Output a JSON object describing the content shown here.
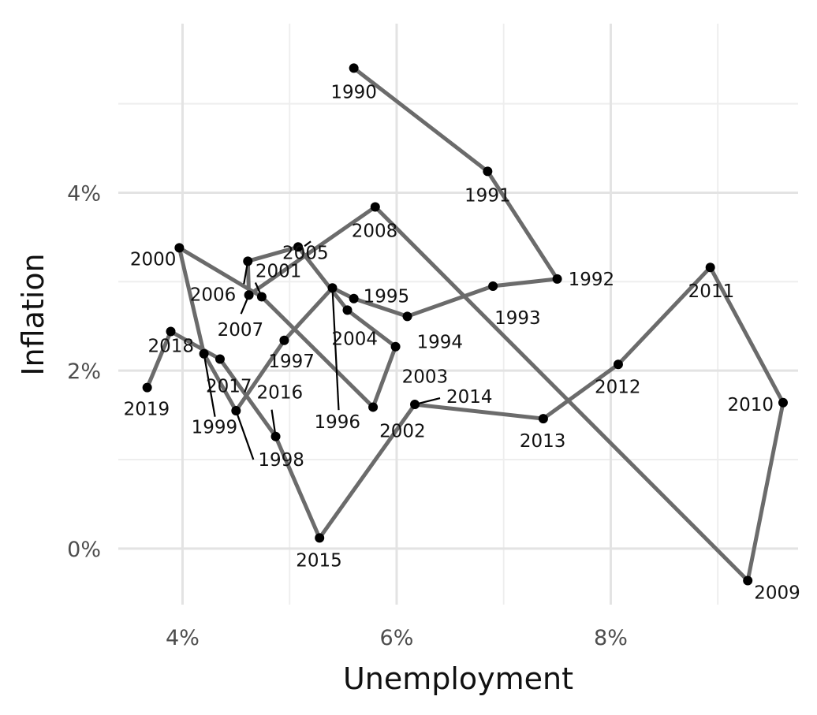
{
  "chart_data": {
    "type": "scatter",
    "connected": true,
    "xlabel": "Unemployment",
    "ylabel": "Inflation",
    "x_format": "percent",
    "y_format": "percent",
    "xlim": [
      3.4,
      9.75
    ],
    "ylim": [
      -0.63,
      5.9
    ],
    "x_ticks": [
      4,
      6,
      8
    ],
    "x_tick_labels": [
      "4%",
      "6%",
      "8%"
    ],
    "y_ticks": [
      0,
      2,
      4
    ],
    "y_tick_labels": [
      "0%",
      "2%",
      "4%"
    ],
    "grid": true,
    "line_color": "#6b6b6b",
    "point_color": "#000000",
    "points": [
      {
        "year": "1990",
        "x": 5.6,
        "y": 5.4
      },
      {
        "year": "1991",
        "x": 6.85,
        "y": 4.24
      },
      {
        "year": "1992",
        "x": 7.5,
        "y": 3.03
      },
      {
        "year": "1993",
        "x": 6.9,
        "y": 2.95
      },
      {
        "year": "1994",
        "x": 6.1,
        "y": 2.61
      },
      {
        "year": "1995",
        "x": 5.6,
        "y": 2.81
      },
      {
        "year": "1996",
        "x": 5.4,
        "y": 2.93
      },
      {
        "year": "1997",
        "x": 4.95,
        "y": 2.34
      },
      {
        "year": "1998",
        "x": 4.5,
        "y": 1.55
      },
      {
        "year": "1999",
        "x": 4.2,
        "y": 2.19
      },
      {
        "year": "2000",
        "x": 3.97,
        "y": 3.38
      },
      {
        "year": "2001",
        "x": 4.74,
        "y": 2.83
      },
      {
        "year": "2002",
        "x": 5.78,
        "y": 1.59
      },
      {
        "year": "2003",
        "x": 5.99,
        "y": 2.27
      },
      {
        "year": "2004",
        "x": 5.54,
        "y": 2.68
      },
      {
        "year": "2005",
        "x": 5.08,
        "y": 3.39
      },
      {
        "year": "2006",
        "x": 4.61,
        "y": 3.23
      },
      {
        "year": "2007",
        "x": 4.62,
        "y": 2.85
      },
      {
        "year": "2008",
        "x": 5.8,
        "y": 3.84
      },
      {
        "year": "2009",
        "x": 9.28,
        "y": -0.36
      },
      {
        "year": "2010",
        "x": 9.61,
        "y": 1.64
      },
      {
        "year": "2011",
        "x": 8.93,
        "y": 3.16
      },
      {
        "year": "2012",
        "x": 8.07,
        "y": 2.07
      },
      {
        "year": "2013",
        "x": 7.37,
        "y": 1.46
      },
      {
        "year": "2014",
        "x": 6.17,
        "y": 1.62
      },
      {
        "year": "2015",
        "x": 5.28,
        "y": 0.12
      },
      {
        "year": "2016",
        "x": 4.87,
        "y": 1.26
      },
      {
        "year": "2017",
        "x": 4.35,
        "y": 2.13
      },
      {
        "year": "2018",
        "x": 3.89,
        "y": 2.44
      },
      {
        "year": "2019",
        "x": 3.67,
        "y": 1.81
      }
    ]
  }
}
